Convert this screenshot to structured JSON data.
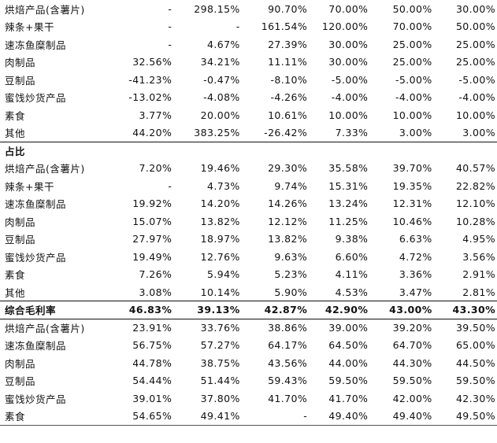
{
  "rows_growth": [
    {
      "label": "烘焙产品(含薯片)",
      "v": [
        "-",
        "298.15%",
        "90.70%",
        "70.00%",
        "50.00%",
        "30.00%"
      ]
    },
    {
      "label": "辣条+果干",
      "v": [
        "-",
        "-",
        "161.54%",
        "120.00%",
        "70.00%",
        "50.00%"
      ]
    },
    {
      "label": "速冻鱼糜制品",
      "v": [
        "-",
        "4.67%",
        "27.39%",
        "30.00%",
        "25.00%",
        "25.00%"
      ]
    },
    {
      "label": "肉制品",
      "v": [
        "32.56%",
        "34.21%",
        "11.11%",
        "30.00%",
        "25.00%",
        "25.00%"
      ]
    },
    {
      "label": "豆制品",
      "v": [
        "-41.23%",
        "-0.47%",
        "-8.10%",
        "-5.00%",
        "-5.00%",
        "-5.00%"
      ]
    },
    {
      "label": "蜜饯炒货产品",
      "v": [
        "-13.02%",
        "-4.08%",
        "-4.26%",
        "-4.00%",
        "-4.00%",
        "-4.00%"
      ]
    },
    {
      "label": "素食",
      "v": [
        "3.77%",
        "20.00%",
        "10.61%",
        "10.00%",
        "10.00%",
        "10.00%"
      ]
    },
    {
      "label": "其他",
      "v": [
        "44.20%",
        "383.25%",
        "-26.42%",
        "7.33%",
        "3.00%",
        "3.00%"
      ]
    }
  ],
  "share_title": "占比",
  "rows_share": [
    {
      "label": "烘焙产品(含薯片)",
      "v": [
        "7.20%",
        "19.46%",
        "29.30%",
        "35.58%",
        "39.70%",
        "40.57%"
      ]
    },
    {
      "label": "辣条+果干",
      "v": [
        "-",
        "4.73%",
        "9.74%",
        "15.31%",
        "19.35%",
        "22.82%"
      ]
    },
    {
      "label": "速冻鱼糜制品",
      "v": [
        "19.92%",
        "14.20%",
        "14.26%",
        "13.24%",
        "12.31%",
        "12.10%"
      ]
    },
    {
      "label": "肉制品",
      "v": [
        "15.07%",
        "13.82%",
        "12.12%",
        "11.25%",
        "10.46%",
        "10.28%"
      ]
    },
    {
      "label": "豆制品",
      "v": [
        "27.97%",
        "18.97%",
        "13.82%",
        "9.38%",
        "6.63%",
        "4.95%"
      ]
    },
    {
      "label": "蜜饯炒货产品",
      "v": [
        "19.49%",
        "12.76%",
        "9.63%",
        "6.60%",
        "4.72%",
        "3.56%"
      ]
    },
    {
      "label": "素食",
      "v": [
        "7.26%",
        "5.94%",
        "5.23%",
        "4.11%",
        "3.36%",
        "2.91%"
      ]
    },
    {
      "label": "其他",
      "v": [
        "3.08%",
        "10.14%",
        "5.90%",
        "4.53%",
        "3.47%",
        "2.81%"
      ]
    }
  ],
  "margin_total": {
    "label": "综合毛利率",
    "v": [
      "46.83%",
      "39.13%",
      "42.87%",
      "42.90%",
      "43.00%",
      "43.30%"
    ]
  },
  "rows_margin": [
    {
      "label": "烘焙产品(含薯片)",
      "v": [
        "23.91%",
        "33.76%",
        "38.86%",
        "39.00%",
        "39.20%",
        "39.50%"
      ]
    },
    {
      "label": "速冻鱼糜制品",
      "v": [
        "56.75%",
        "57.27%",
        "64.17%",
        "64.50%",
        "64.70%",
        "65.00%"
      ]
    },
    {
      "label": "肉制品",
      "v": [
        "44.78%",
        "38.75%",
        "43.56%",
        "44.00%",
        "44.30%",
        "44.50%"
      ]
    },
    {
      "label": "豆制品",
      "v": [
        "54.44%",
        "51.44%",
        "59.43%",
        "59.50%",
        "59.50%",
        "59.50%"
      ]
    },
    {
      "label": "蜜饯炒货产品",
      "v": [
        "39.01%",
        "37.80%",
        "41.70%",
        "41.70%",
        "42.00%",
        "42.30%"
      ]
    },
    {
      "label": "素食",
      "v": [
        "54.65%",
        "49.41%",
        "-",
        "49.40%",
        "49.40%",
        "49.50%"
      ]
    }
  ]
}
